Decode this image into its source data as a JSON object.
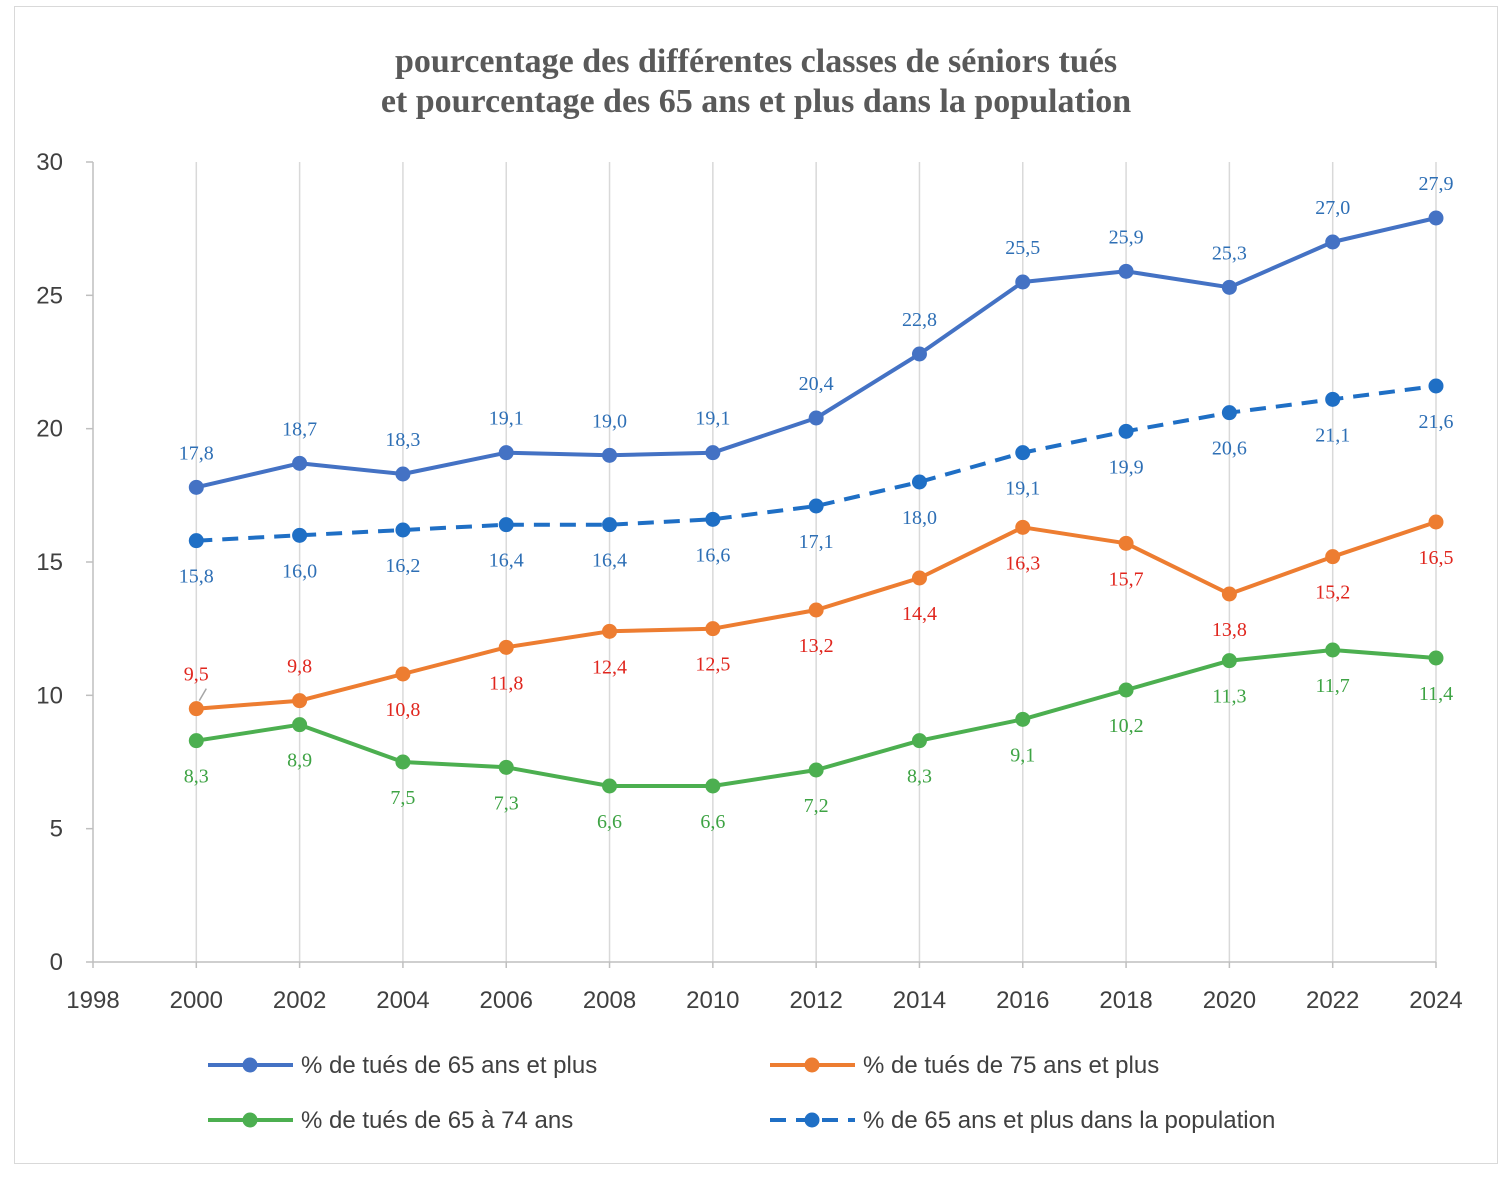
{
  "chart_data": {
    "type": "line",
    "title": [
      "pourcentage des différentes classes de séniors tués",
      "et pourcentage des 65 ans et plus dans la population"
    ],
    "xlabel": "",
    "ylabel": "",
    "xlim": [
      1998,
      2024
    ],
    "ylim": [
      0,
      30
    ],
    "x_ticks": [
      "1998",
      "2000",
      "2002",
      "2004",
      "2006",
      "2008",
      "2010",
      "2012",
      "2014",
      "2016",
      "2018",
      "2020",
      "2022",
      "2024"
    ],
    "y_ticks": [
      "0",
      "5",
      "10",
      "15",
      "20",
      "25",
      "30"
    ],
    "x": [
      2000,
      2002,
      2004,
      2006,
      2008,
      2010,
      2012,
      2014,
      2016,
      2018,
      2020,
      2022,
      2024
    ],
    "grid": "vertical",
    "legend_position": "bottom",
    "series": [
      {
        "name": "% de tués de 65 ans et plus",
        "color": "#4472c4",
        "label_color": "#2e6fb5",
        "dashed": false,
        "values": [
          17.8,
          18.7,
          18.3,
          19.1,
          19.0,
          19.1,
          20.4,
          22.8,
          25.5,
          25.9,
          25.3,
          27.0,
          27.9
        ],
        "labels": [
          "17,8",
          "18,7",
          "18,3",
          "19,1",
          "19,0",
          "19,1",
          "20,4",
          "22,8",
          "25,5",
          "25,9",
          "25,3",
          "27,0",
          "27,9"
        ]
      },
      {
        "name": "% de tués de 75 ans et plus",
        "color": "#ed7d31",
        "label_color": "#e0261e",
        "dashed": false,
        "values": [
          9.5,
          9.8,
          10.8,
          11.8,
          12.4,
          12.5,
          13.2,
          14.4,
          16.3,
          15.7,
          13.8,
          15.2,
          16.5
        ],
        "labels": [
          "9,5",
          "9,8",
          "10,8",
          "11,8",
          "12,4",
          "12,5",
          "13,2",
          "14,4",
          "16,3",
          "15,7",
          "13,8",
          "15,2",
          "16,5"
        ]
      },
      {
        "name": "% de tués de 65 à 74 ans",
        "color": "#4caf50",
        "label_color": "#3ea344",
        "dashed": false,
        "values": [
          8.3,
          8.9,
          7.5,
          7.3,
          6.6,
          6.6,
          7.2,
          8.3,
          9.1,
          10.2,
          11.3,
          11.7,
          11.4
        ],
        "labels": [
          "8,3",
          "8,9",
          "7,5",
          "7,3",
          "6,6",
          "6,6",
          "7,2",
          "8,3",
          "9,1",
          "10,2",
          "11,3",
          "11,7",
          "11,4"
        ]
      },
      {
        "name": "% de 65 ans et plus dans la population",
        "color": "#1f6fc5",
        "label_color": "#2e6fb5",
        "dashed": true,
        "values": [
          15.8,
          16.0,
          16.2,
          16.4,
          16.4,
          16.6,
          17.1,
          18.0,
          19.1,
          19.9,
          20.6,
          21.1,
          21.6
        ],
        "labels": [
          "15,8",
          "16,0",
          "16,2",
          "16,4",
          "16,4",
          "16,6",
          "17,1",
          "18,0",
          "19,1",
          "19,9",
          "20,6",
          "21,1",
          "21,6"
        ]
      }
    ]
  }
}
